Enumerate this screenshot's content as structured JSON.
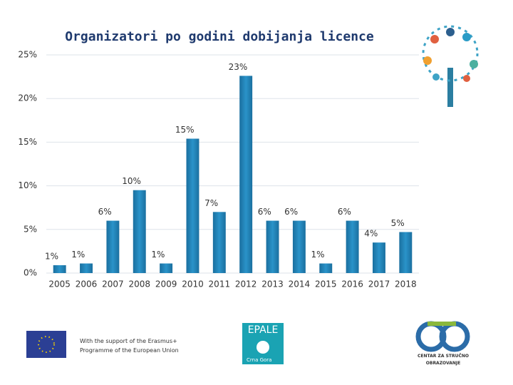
{
  "chart_data": {
    "type": "bar",
    "title": "Organizatori po godini dobijanja licence",
    "categories": [
      "2005",
      "2006",
      "2007",
      "2008",
      "2009",
      "2010",
      "2011",
      "2012",
      "2013",
      "2014",
      "2015",
      "2016",
      "2017",
      "2018"
    ],
    "values": [
      0.9,
      1.1,
      6,
      9.5,
      1.1,
      15.4,
      7,
      22.6,
      6,
      6,
      1.1,
      6,
      3.5,
      4.7
    ],
    "value_labels": [
      "1%",
      "1%",
      "6%",
      "10%",
      "1%",
      "15%",
      "7%",
      "23%",
      "6%",
      "6%",
      "1%",
      "6%",
      "4%",
      "5%"
    ],
    "color": "#1f7fb6",
    "ylim": [
      0,
      25
    ],
    "yticks": [
      {
        "value": 0,
        "label": "0%"
      },
      {
        "value": 5,
        "label": "5%"
      },
      {
        "value": 10,
        "label": "10%"
      },
      {
        "value": 15,
        "label": "15%"
      },
      {
        "value": 20,
        "label": "20%"
      },
      {
        "value": 25,
        "label": "25%"
      }
    ],
    "grid": true
  },
  "footer": {
    "erasmus_line1": "With the support of the Erasmus+",
    "erasmus_line2": "Programme of the European Union",
    "epale": "EPALE",
    "epale_country": "Crna Gora",
    "cso_line1": "CENTAR ZA STRUČNO",
    "cso_line2": "OBRAZOVANJE"
  }
}
